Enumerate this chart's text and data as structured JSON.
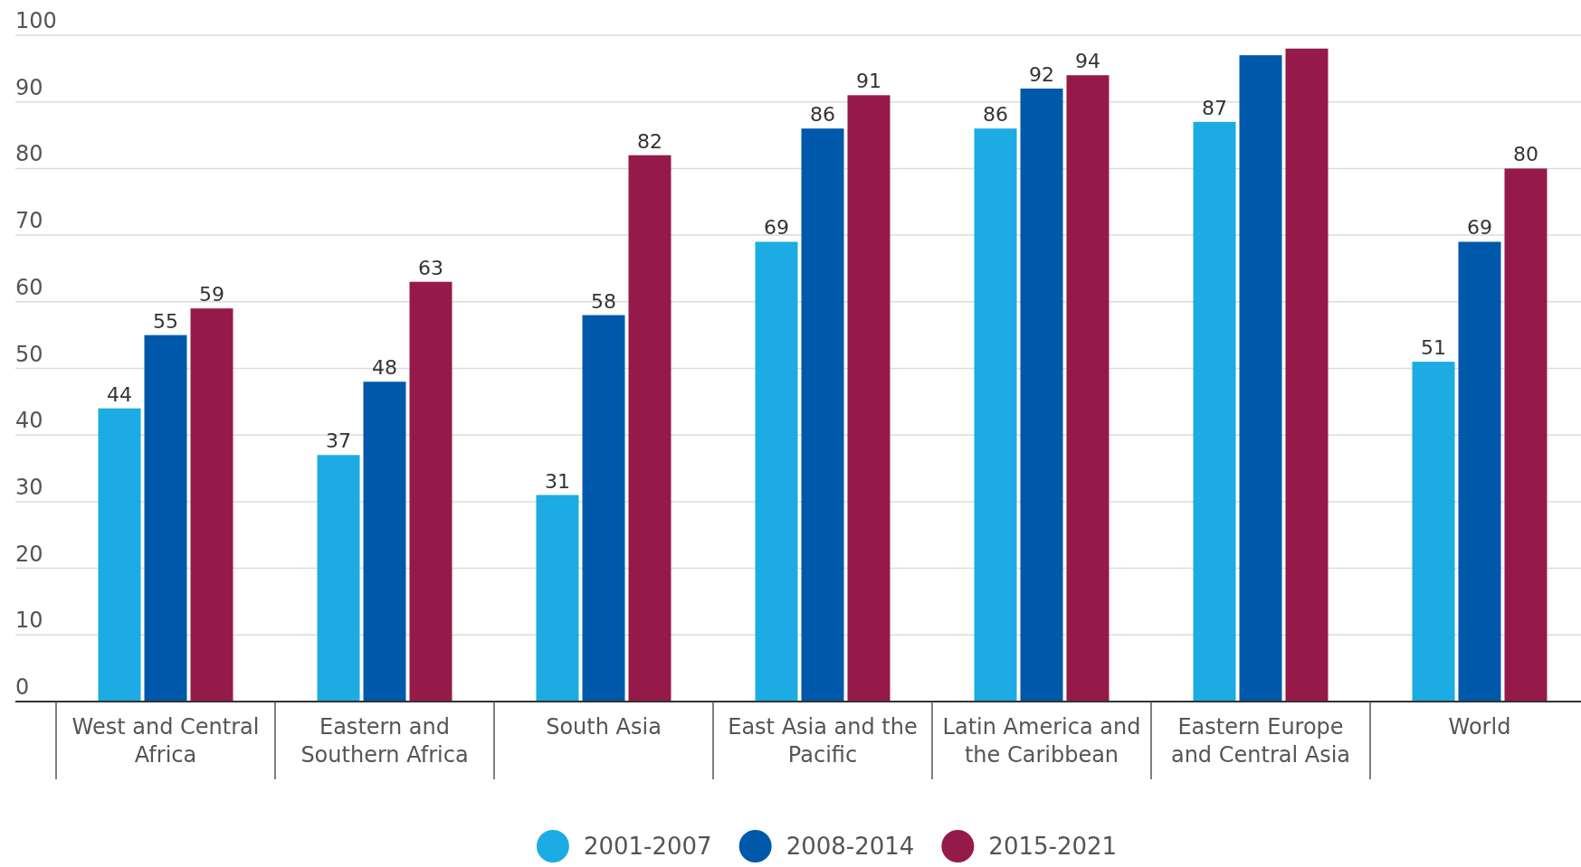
{
  "chart_data": {
    "type": "bar",
    "categories": [
      "West and Central Africa",
      "Eastern and Southern Africa",
      "South Asia",
      "East Asia and the Pacific",
      "Latin America and the Caribbean",
      "Eastern Europe and Central Asia",
      "World"
    ],
    "series": [
      {
        "name": "2001-2007",
        "color": "#1cabe2",
        "values": [
          44,
          37,
          31,
          69,
          86,
          87,
          51
        ],
        "value_labels": [
          "44",
          "37",
          "31",
          "69",
          "86",
          "87",
          "51"
        ]
      },
      {
        "name": "2008-2014",
        "color": "#0058ab",
        "values": [
          55,
          48,
          58,
          86,
          92,
          97,
          69
        ],
        "value_labels": [
          "55",
          "48",
          "58",
          "86",
          "92",
          null,
          "69"
        ]
      },
      {
        "name": "2015-2021",
        "color": "#961a49",
        "values": [
          59,
          63,
          82,
          91,
          94,
          98,
          80
        ],
        "value_labels": [
          "59",
          "63",
          "82",
          "91",
          "94",
          null,
          "80"
        ]
      }
    ],
    "ylim": [
      0,
      100
    ],
    "yticks": [
      0,
      10,
      20,
      30,
      40,
      50,
      60,
      70,
      80,
      90,
      100
    ],
    "grid": "y",
    "legend": "bottom"
  }
}
